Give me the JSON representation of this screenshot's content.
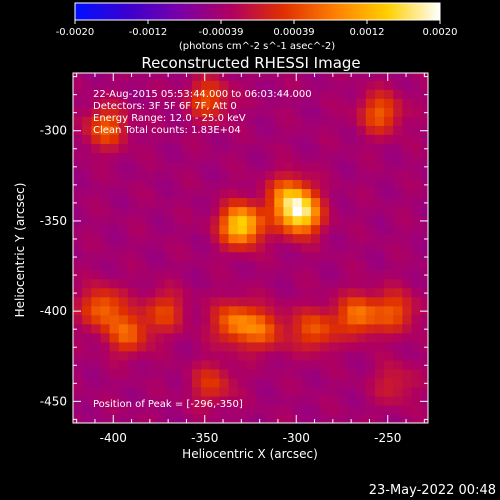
{
  "chart_data": {
    "type": "heatmap",
    "title": "Reconstructed RHESSI Image",
    "xlabel": "Heliocentric X (arcsec)",
    "ylabel": "Heliocentric Y (arcsec)",
    "xlim": [
      -422,
      -228
    ],
    "ylim": [
      -462,
      -268
    ],
    "x_ticks": [
      "-400",
      "-350",
      "-300",
      "-250"
    ],
    "y_ticks": [
      "-300",
      "-350",
      "-400",
      "-450"
    ],
    "x_tick_values": [
      -400,
      -350,
      -300,
      -250
    ],
    "y_tick_values": [
      -300,
      -350,
      -400,
      -450
    ],
    "colorbar": {
      "unit": "(photons cm^-2 s^-1 asec^-2)",
      "tick_labels": [
        "-0.0020",
        "-0.0012",
        "-0.00039",
        "0.00039",
        "0.0012",
        "0.0020"
      ],
      "range": [
        -0.002,
        0.002
      ],
      "colors": [
        "#0010ff",
        "#3a00d0",
        "#7a00a8",
        "#b00060",
        "#e03000",
        "#ff8000",
        "#ffd000",
        "#ffffff"
      ]
    },
    "annotations": [
      "22-Aug-2015 05:53:44.000 to 06:03:44.000",
      "Detectors: 3F 5F 6F 7F, Att 0",
      "Energy Range: 12.0 - 25.0 keV",
      "Clean    Total counts: 1.83E+04"
    ],
    "peak_label": "Position of Peak = [-296,-350]",
    "peak": [
      -296,
      -350
    ],
    "sources": [
      {
        "x": -330,
        "y": -352,
        "amp": 0.002
      },
      {
        "x": -298,
        "y": -346,
        "amp": 0.002
      },
      {
        "x": -304,
        "y": -336,
        "amp": 0.0012
      },
      {
        "x": -404,
        "y": -298,
        "amp": 0.001
      },
      {
        "x": -348,
        "y": -282,
        "amp": 0.0009
      },
      {
        "x": -254,
        "y": -290,
        "amp": 0.001
      },
      {
        "x": -406,
        "y": -398,
        "amp": 0.0011
      },
      {
        "x": -392,
        "y": -412,
        "amp": 0.001
      },
      {
        "x": -372,
        "y": -400,
        "amp": 0.0008
      },
      {
        "x": -334,
        "y": -406,
        "amp": 0.0012
      },
      {
        "x": -318,
        "y": -410,
        "amp": 0.001
      },
      {
        "x": -290,
        "y": -410,
        "amp": 0.001
      },
      {
        "x": -266,
        "y": -402,
        "amp": 0.0012
      },
      {
        "x": -246,
        "y": -400,
        "amp": 0.0009
      },
      {
        "x": -346,
        "y": -440,
        "amp": 0.0007
      },
      {
        "x": -246,
        "y": -440,
        "amp": 0.0005
      }
    ]
  },
  "footer": {
    "timestamp": "23-May-2022 00:48"
  }
}
